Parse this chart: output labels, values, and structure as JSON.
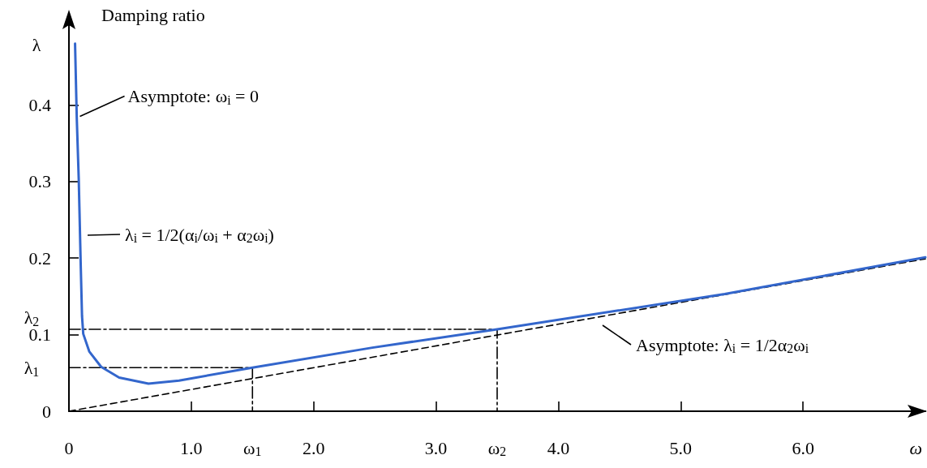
{
  "chart_data": {
    "type": "line",
    "title": "Damping ratio",
    "xlabel": "ω",
    "ylabel": "λ",
    "xlim": [
      0,
      7.0
    ],
    "ylim": [
      0,
      0.52
    ],
    "xticks": [
      0,
      {
        "value": 1,
        "label": "1.0"
      },
      {
        "value": 2,
        "label": "2.0"
      },
      {
        "value": 3,
        "label": "3.0"
      },
      {
        "value": 4,
        "label": "4.0"
      },
      {
        "value": 5,
        "label": "5.0"
      },
      {
        "value": 6,
        "label": "6.0"
      }
    ],
    "yticks": [
      0,
      0.1,
      0.2,
      0.3,
      0.4
    ],
    "grid": false,
    "marker": "none",
    "series": [
      {
        "color": "#3366cc",
        "line_style": "solid",
        "x": [
          0.05,
          0.064,
          0.08,
          0.097,
          0.107,
          0.117,
          0.166,
          0.263,
          0.41,
          0.65,
          0.9,
          1.5,
          2.48,
          3.5,
          5.36,
          7.0
        ],
        "values": [
          0.48,
          0.383,
          0.304,
          0.187,
          0.124,
          0.101,
          0.078,
          0.058,
          0.044,
          0.036,
          0.04,
          0.057,
          0.083,
          0.107,
          0.153,
          0.201
        ]
      },
      {
        "color": "#000000",
        "line_style": "dashed",
        "x": [
          0,
          7.0
        ],
        "values": [
          0,
          0.199
        ]
      },
      {
        "color": "#000000",
        "line_style": "dashdot",
        "x": [
          0,
          1.5,
          1.5
        ],
        "values": [
          0.057,
          0.057,
          0
        ]
      },
      {
        "color": "#000000",
        "line_style": "dashdot",
        "x": [
          0,
          3.5,
          3.5
        ],
        "values": [
          0.107,
          0.107,
          0
        ]
      }
    ],
    "annotations": [
      {
        "text": "Asymptote: ω$_{i}$ = 0",
        "x": 0.07,
        "y": 0.385
      },
      "λ$_{i}$ = 1/2(α$_{i}$/ω$_{i}$ + α$_{2}$ω$_{i}$)",
      "Asymptote: λ$_{i}$ = 1/2α$_{2}$ω$_{i}$",
      {
        "text": "λ$_{1}$",
        "x": 0,
        "y": 0.057
      },
      {
        "text": "λ$_{2}$",
        "x": 0,
        "y": 0.107
      },
      {
        "text": "ω$_{1}$",
        "x": 1.5,
        "y": 0
      },
      {
        "text": "ω$_{2}$",
        "x": 3.5,
        "y": 0
      }
    ]
  }
}
